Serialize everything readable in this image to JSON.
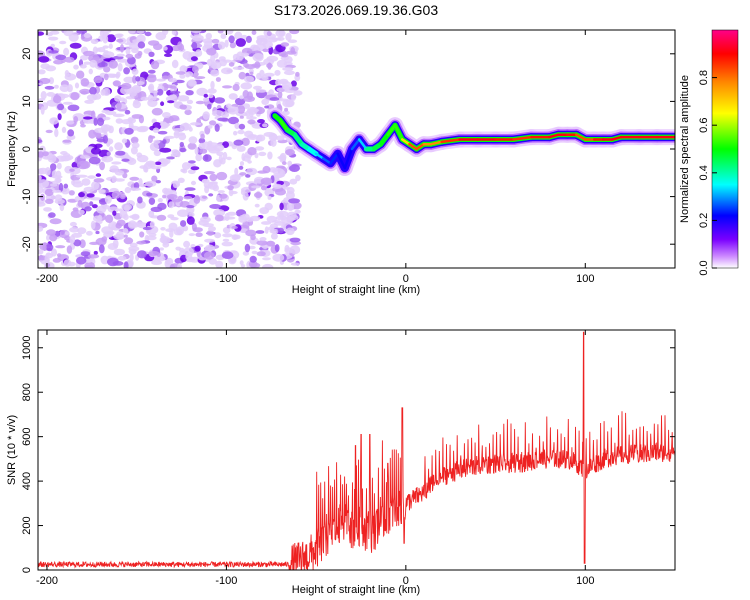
{
  "chart_data": [
    {
      "type": "heatmap",
      "title": "S173.2026.069.19.36.G03",
      "xlabel": "Height of straight line (km)",
      "ylabel": "Frequency (Hz)",
      "xlim": [
        -205,
        150
      ],
      "ylim": [
        -25,
        25
      ],
      "xticks": [
        -200,
        -100,
        0,
        100
      ],
      "yticks": [
        -20,
        -10,
        0,
        10,
        20
      ],
      "xtick_labels": [
        "-200",
        "-100",
        "0",
        "100"
      ],
      "ytick_labels": [
        "-20",
        "-10",
        "0",
        "10",
        "20"
      ],
      "colorbar": {
        "label": "Normalized spectral amplitude",
        "range": [
          0,
          1
        ],
        "ticks": [
          0.0,
          0.2,
          0.4,
          0.6,
          0.8
        ],
        "tick_labels": [
          "0.0",
          "0.2",
          "0.4",
          "0.6",
          "0.8"
        ],
        "colors": [
          "#ffffff",
          "#cc88ff",
          "#7a00ff",
          "#0000ff",
          "#00ffff",
          "#00ff00",
          "#ffff00",
          "#ff8800",
          "#ff0000",
          "#ff0088"
        ]
      },
      "noise_region_x": [
        -205,
        -60
      ],
      "ridge": {
        "x": [
          -73,
          -70,
          -66,
          -62,
          -58,
          -54,
          -50,
          -46,
          -42,
          -38,
          -34,
          -30,
          -26,
          -22,
          -18,
          -14,
          -10,
          -6,
          -2,
          2,
          6,
          10,
          14,
          20,
          30,
          40,
          50,
          60,
          70,
          80,
          85,
          90,
          95,
          100,
          105,
          110,
          115,
          120,
          130,
          140,
          150
        ],
        "y": [
          7,
          6,
          4,
          3,
          1,
          0,
          -1,
          -2,
          -3,
          -1,
          -4,
          0,
          2,
          0,
          0,
          1,
          3,
          5,
          2,
          1,
          0,
          1,
          1,
          1.5,
          2,
          2,
          2,
          2,
          2.5,
          2.5,
          3,
          3,
          3,
          2,
          2,
          2,
          2,
          2.5,
          2.5,
          2.5,
          2.5
        ],
        "amplitude": [
          0.5,
          0.6,
          0.55,
          0.5,
          0.5,
          0.45,
          0.45,
          0.4,
          0.35,
          0.35,
          0.3,
          0.35,
          0.4,
          0.45,
          0.55,
          0.5,
          0.6,
          0.55,
          0.6,
          0.8,
          0.85,
          0.8,
          0.75,
          0.8,
          0.9,
          0.9,
          0.9,
          0.85,
          0.85,
          0.9,
          0.9,
          0.9,
          0.85,
          0.8,
          0.85,
          0.9,
          0.9,
          0.9,
          0.9,
          0.9,
          0.9
        ]
      }
    },
    {
      "type": "line",
      "xlabel": "Height of straight line (km)",
      "ylabel": "SNR (10 * v/v)",
      "xlim": [
        -205,
        150
      ],
      "ylim": [
        0,
        1080
      ],
      "xticks": [
        -200,
        -100,
        0,
        100
      ],
      "yticks": [
        0,
        200,
        400,
        600,
        800,
        1000
      ],
      "xtick_labels": [
        "-200",
        "-100",
        "0",
        "100"
      ],
      "ytick_labels": [
        "0",
        "200",
        "400",
        "600",
        "800",
        "1000"
      ],
      "color": "#ee2222",
      "series": {
        "name": "SNR",
        "baseline_x": [
          -205,
          -65,
          -60,
          -55,
          -50,
          -45,
          -40,
          -35,
          -30,
          -25,
          -20,
          -15,
          -10,
          -5,
          0,
          10,
          20,
          30,
          40,
          50,
          60,
          70,
          80,
          90,
          95,
          100,
          110,
          120,
          130,
          140,
          150
        ],
        "baseline_y": [
          25,
          25,
          40,
          60,
          90,
          140,
          180,
          220,
          180,
          200,
          150,
          200,
          250,
          280,
          300,
          350,
          420,
          450,
          470,
          480,
          480,
          490,
          500,
          500,
          480,
          450,
          500,
          520,
          520,
          530,
          530
        ],
        "spikes_x": [
          -28,
          -25,
          -20,
          -10,
          -2,
          99
        ],
        "spikes_y": [
          560,
          610,
          610,
          480,
          730,
          1070
        ]
      }
    }
  ]
}
